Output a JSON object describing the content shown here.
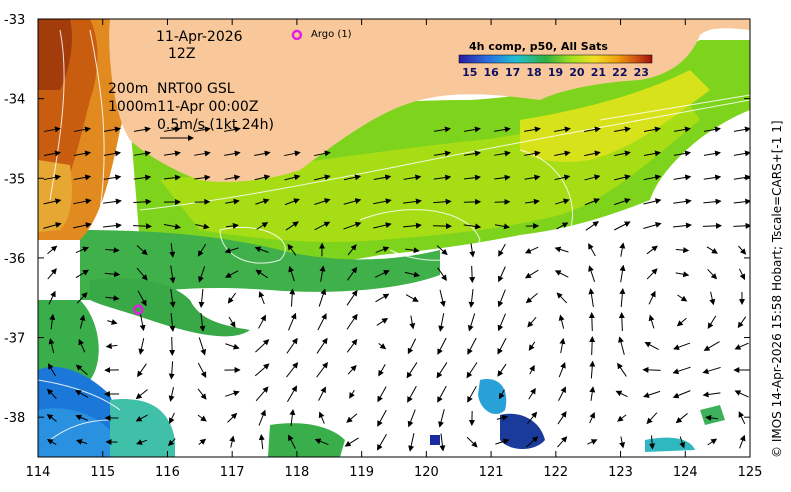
{
  "map": {
    "date": "11-Apr-2026",
    "hour": "12Z",
    "depth_200": "200m",
    "product": "NRT00 GSL",
    "depth_1000_time": "1000m11-Apr 00:00Z",
    "scale_arrow_label": "0.5m/s (1kt 24h)",
    "argo_label": "Argo (1)",
    "colorbar_title": "4h comp, p50, All Sats",
    "colorbar_ticks": [
      "15",
      "16",
      "17",
      "18",
      "19",
      "20",
      "21",
      "22",
      "23"
    ],
    "side_note": "© IMOS 14-Apr-2026 15:58 Hobart; Tscale=CARS+[-1 1]",
    "x_ticks": [
      "114",
      "115",
      "116",
      "117",
      "118",
      "119",
      "120",
      "121",
      "122",
      "123",
      "124",
      "125"
    ],
    "y_ticks": [
      "-33",
      "-34",
      "-35",
      "-36",
      "-37",
      "-38"
    ],
    "colors": {
      "land": "#f8c89a",
      "argo": "#e020e0",
      "warm": "#d06a10",
      "mid_green": "#6cd020",
      "cool_green": "#2ea64a",
      "cold_blue": "#1870d8"
    }
  },
  "chart_data": {
    "type": "heatmap",
    "xlim": [
      114,
      125
    ],
    "ylim": [
      -38.5,
      -33
    ],
    "colorbar_range": [
      14.5,
      23.5
    ],
    "argo_floats": [
      {
        "lon": 118.0,
        "lat": -33.2
      },
      {
        "lon": 115.55,
        "lat": -36.65
      }
    ]
  }
}
